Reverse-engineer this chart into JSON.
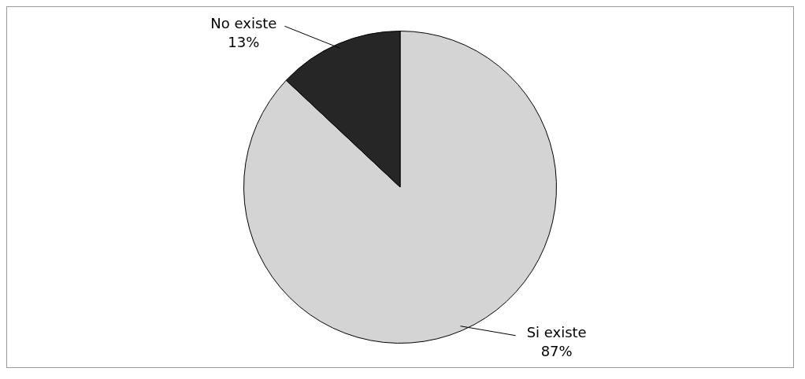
{
  "chart_data": {
    "type": "pie",
    "categories": [
      "Si existe",
      "No existe"
    ],
    "values": [
      87,
      13
    ],
    "colors": [
      "#d4d4d4",
      "#262626"
    ],
    "value_labels": [
      "87%",
      "13%"
    ],
    "legend": false
  }
}
